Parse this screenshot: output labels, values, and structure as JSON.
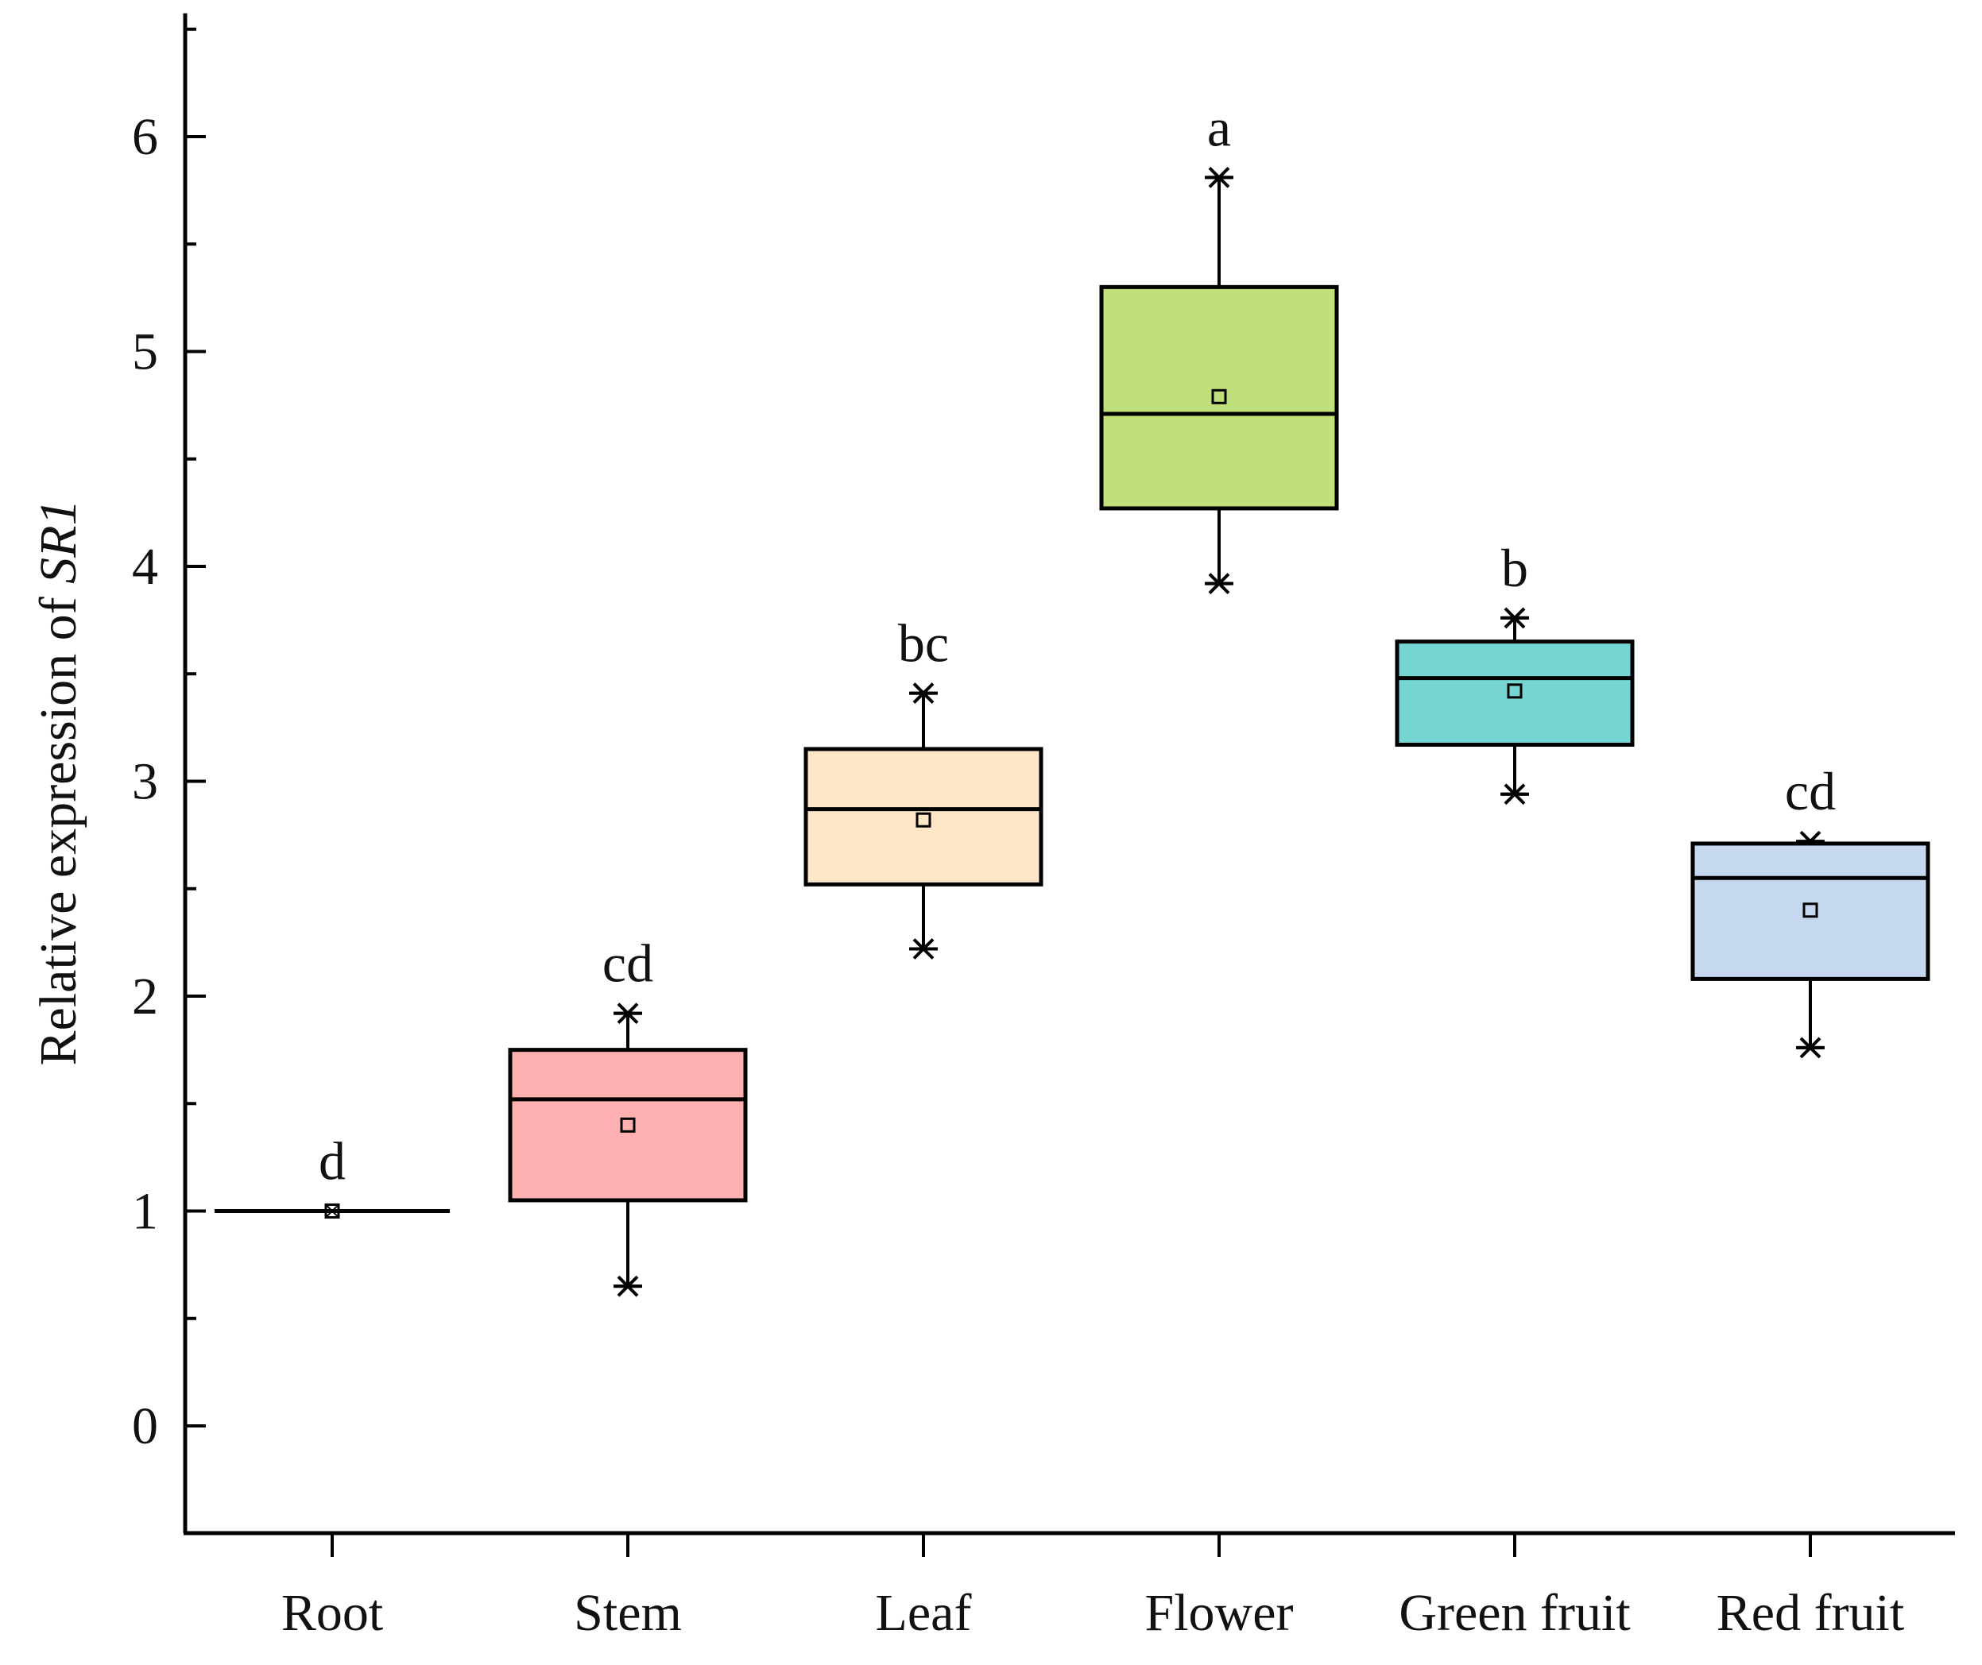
{
  "chart_data": {
    "type": "box",
    "ylabel_prefix": "Relative expression of ",
    "ylabel_gene": "SR1",
    "xlabel": "",
    "ylim": [
      -0.5,
      6.5
    ],
    "yticks": [
      0,
      1,
      2,
      3,
      4,
      5,
      6
    ],
    "yticks_minor": [
      -0.5,
      0.5,
      1.5,
      2.5,
      3.5,
      4.5,
      5.5,
      6.5
    ],
    "categories": [
      "Root",
      "Stem",
      "Leaf",
      "Flower",
      "Green fruit",
      "Red fruit"
    ],
    "boxes": [
      {
        "category": "Root",
        "min": 1.0,
        "q1": 1.0,
        "median": 1.0,
        "q3": 1.0,
        "max": 1.0,
        "mean": 1.0,
        "letter": "d",
        "color": "#ffffff"
      },
      {
        "category": "Stem",
        "min": 0.65,
        "q1": 1.05,
        "median": 1.52,
        "q3": 1.75,
        "max": 1.92,
        "mean": 1.4,
        "letter": "cd",
        "color": "#ffb0b0"
      },
      {
        "category": "Leaf",
        "min": 2.22,
        "q1": 2.52,
        "median": 2.87,
        "q3": 3.15,
        "max": 3.41,
        "mean": 2.82,
        "letter": "bc",
        "color": "#ffe6c6"
      },
      {
        "category": "Flower",
        "min": 3.92,
        "q1": 4.27,
        "median": 4.71,
        "q3": 5.3,
        "max": 5.81,
        "mean": 4.79,
        "letter": "a",
        "color": "#bfe07a"
      },
      {
        "category": "Green fruit",
        "min": 2.94,
        "q1": 3.17,
        "median": 3.48,
        "q3": 3.65,
        "max": 3.76,
        "mean": 3.42,
        "letter": "b",
        "color": "#76d6d3"
      },
      {
        "category": "Red fruit",
        "min": 1.76,
        "q1": 2.08,
        "median": 2.55,
        "q3": 2.71,
        "max": 2.72,
        "mean": 2.4,
        "letter": "cd",
        "color": "#c6d8f0"
      }
    ]
  }
}
